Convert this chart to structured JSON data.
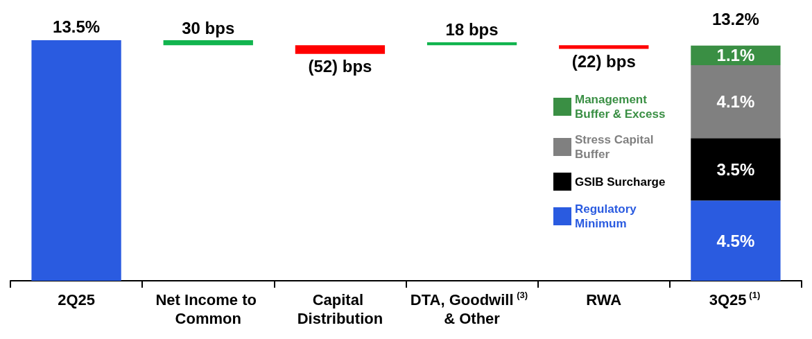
{
  "chart_data": {
    "type": "bar",
    "stacked": true,
    "legend": "right",
    "categories": [
      "2Q25",
      "Net Income to Common",
      "Capital Distribution",
      "DTA, Goodwill$^{(3)}$ & Other",
      "RWA",
      "3Q25$^{(1)}$"
    ],
    "series": [
      {
        "color": "#2a5be0",
        "values": [
          13.5,
          null,
          null,
          null,
          null,
          null
        ],
        "value_labels": [
          "13.5%",
          null,
          null,
          null,
          null,
          null
        ]
      },
      {
        "axis": "y2",
        "values": [
          null,
          30,
          -52,
          18,
          -22,
          null
        ],
        "colors": [
          null,
          "#11b44e",
          "#ff0000",
          "#11b44e",
          "#ff0000",
          null
        ],
        "value_labels": [
          null,
          "30 bps",
          "(52) bps",
          "18 bps",
          "(22) bps",
          null
        ]
      },
      {
        "name": "Regulatory Minimum",
        "color": "#2a5be0",
        "values": [
          null,
          null,
          null,
          null,
          null,
          4.5
        ],
        "value_labels": [
          null,
          null,
          null,
          null,
          null,
          "4.5%"
        ]
      },
      {
        "name": "GSIB Surcharge",
        "color": "#000000",
        "values": [
          null,
          null,
          null,
          null,
          null,
          3.5
        ],
        "value_labels": [
          null,
          null,
          null,
          null,
          null,
          "3.5%"
        ]
      },
      {
        "name": "Stress Capital Buffer",
        "color": "#808080",
        "values": [
          null,
          null,
          null,
          null,
          null,
          4.1
        ],
        "value_labels": [
          null,
          null,
          null,
          null,
          null,
          "4.1%"
        ]
      },
      {
        "name": "Management Buffer & Excess",
        "color": "#3a8f44",
        "values": [
          null,
          null,
          null,
          null,
          null,
          1.1
        ],
        "value_labels": [
          null,
          null,
          null,
          null,
          null,
          "1.1%"
        ]
      }
    ],
    "totals": [
      null,
      null,
      null,
      null,
      null,
      "13.2%"
    ]
  }
}
